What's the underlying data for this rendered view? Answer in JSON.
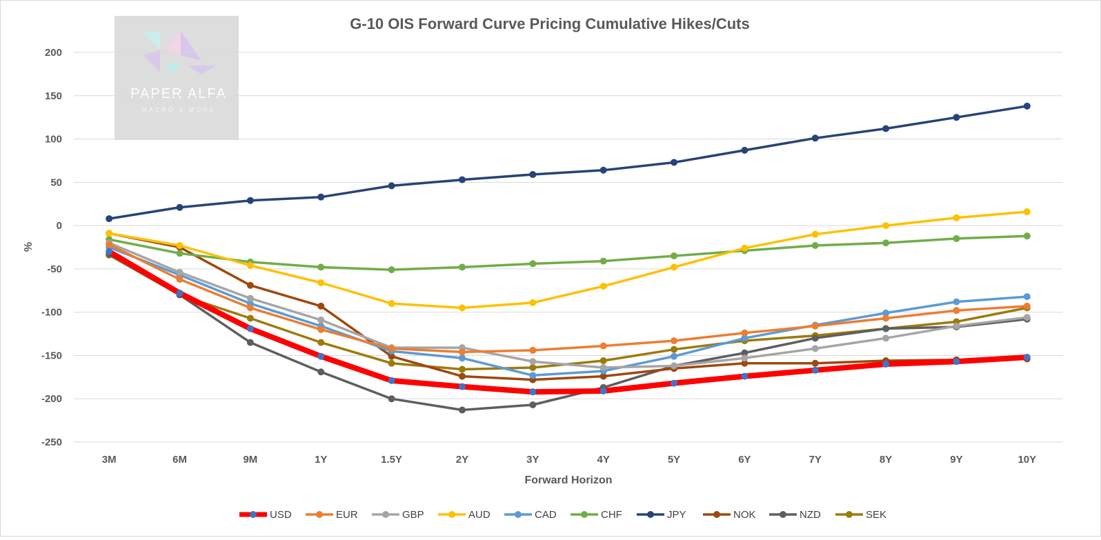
{
  "watermark": {
    "brand": "PAPER ALFA",
    "tagline": "MACRO & MORE"
  },
  "chart_data": {
    "type": "line",
    "title": "G-10 OIS Forward Curve Pricing Cumulative Hikes/Cuts",
    "xlabel": "Forward Horizon",
    "ylabel": "%",
    "ylim": [
      -250,
      200
    ],
    "yticks": [
      200,
      150,
      100,
      50,
      0,
      -50,
      -100,
      -150,
      -200,
      -250
    ],
    "ytick_labels": [
      "200",
      "150",
      "100",
      "50",
      "0",
      "-50",
      "-100",
      "-150",
      "-200",
      "-250"
    ],
    "grid": true,
    "legend_position": "bottom",
    "categories": [
      "3M",
      "6M",
      "9M",
      "1Y",
      "1.5Y",
      "2Y",
      "3Y",
      "4Y",
      "5Y",
      "6Y",
      "7Y",
      "8Y",
      "9Y",
      "10Y"
    ],
    "series": [
      {
        "name": "SEK",
        "color": "#9C7B0C",
        "values": [
          -34,
          -80,
          -107,
          -135,
          -159,
          -166,
          -164,
          -156,
          -143,
          -133,
          -127,
          -119,
          -111,
          -95
        ]
      },
      {
        "name": "NZD",
        "color": "#5E5E5E",
        "values": [
          -33,
          -80,
          -135,
          -169,
          -200,
          -213,
          -207,
          -187,
          -162,
          -147,
          -130,
          -119,
          -117,
          -108
        ]
      },
      {
        "name": "NOK",
        "color": "#9E480E",
        "values": [
          -9,
          -25,
          -69,
          -93,
          -151,
          -174,
          -178,
          -174,
          -165,
          -159,
          -159,
          -156,
          -155,
          -154
        ]
      },
      {
        "name": "CHF",
        "color": "#70AD47",
        "values": [
          -16,
          -32,
          -42,
          -48,
          -51,
          -48,
          -44,
          -41,
          -35,
          -29,
          -23,
          -20,
          -15,
          -12
        ]
      },
      {
        "name": "CAD",
        "color": "#5B9BD5",
        "values": [
          -25,
          -57,
          -90,
          -116,
          -145,
          -153,
          -173,
          -168,
          -151,
          -130,
          -115,
          -101,
          -88,
          -82
        ]
      },
      {
        "name": "AUD",
        "color": "#FFC000",
        "values": [
          -9,
          -23,
          -46,
          -66,
          -90,
          -95,
          -89,
          -70,
          -48,
          -26,
          -10,
          0,
          9,
          16
        ]
      },
      {
        "name": "GBP",
        "color": "#A5A5A5",
        "values": [
          -20,
          -54,
          -84,
          -109,
          -141,
          -141,
          -157,
          -164,
          -162,
          -153,
          -142,
          -130,
          -116,
          -106
        ]
      },
      {
        "name": "EUR",
        "color": "#ED7D31",
        "values": [
          -22,
          -62,
          -95,
          -120,
          -142,
          -146,
          -144,
          -139,
          -133,
          -124,
          -116,
          -107,
          -98,
          -93
        ]
      },
      {
        "name": "JPY",
        "color": "#264478",
        "values": [
          8,
          21,
          29,
          33,
          46,
          53,
          59,
          64,
          73,
          87,
          101,
          112,
          125,
          138
        ]
      },
      {
        "name": "USD",
        "color": "#FF0000",
        "marker_color": "#4472C4",
        "values": [
          -30,
          -78,
          -119,
          -151,
          -179,
          -186,
          -192,
          -191,
          -182,
          -174,
          -167,
          -160,
          -157,
          -152
        ]
      }
    ],
    "legend_order": [
      "USD",
      "EUR",
      "GBP",
      "AUD",
      "CAD",
      "CHF",
      "JPY",
      "NOK",
      "NZD",
      "SEK"
    ]
  }
}
